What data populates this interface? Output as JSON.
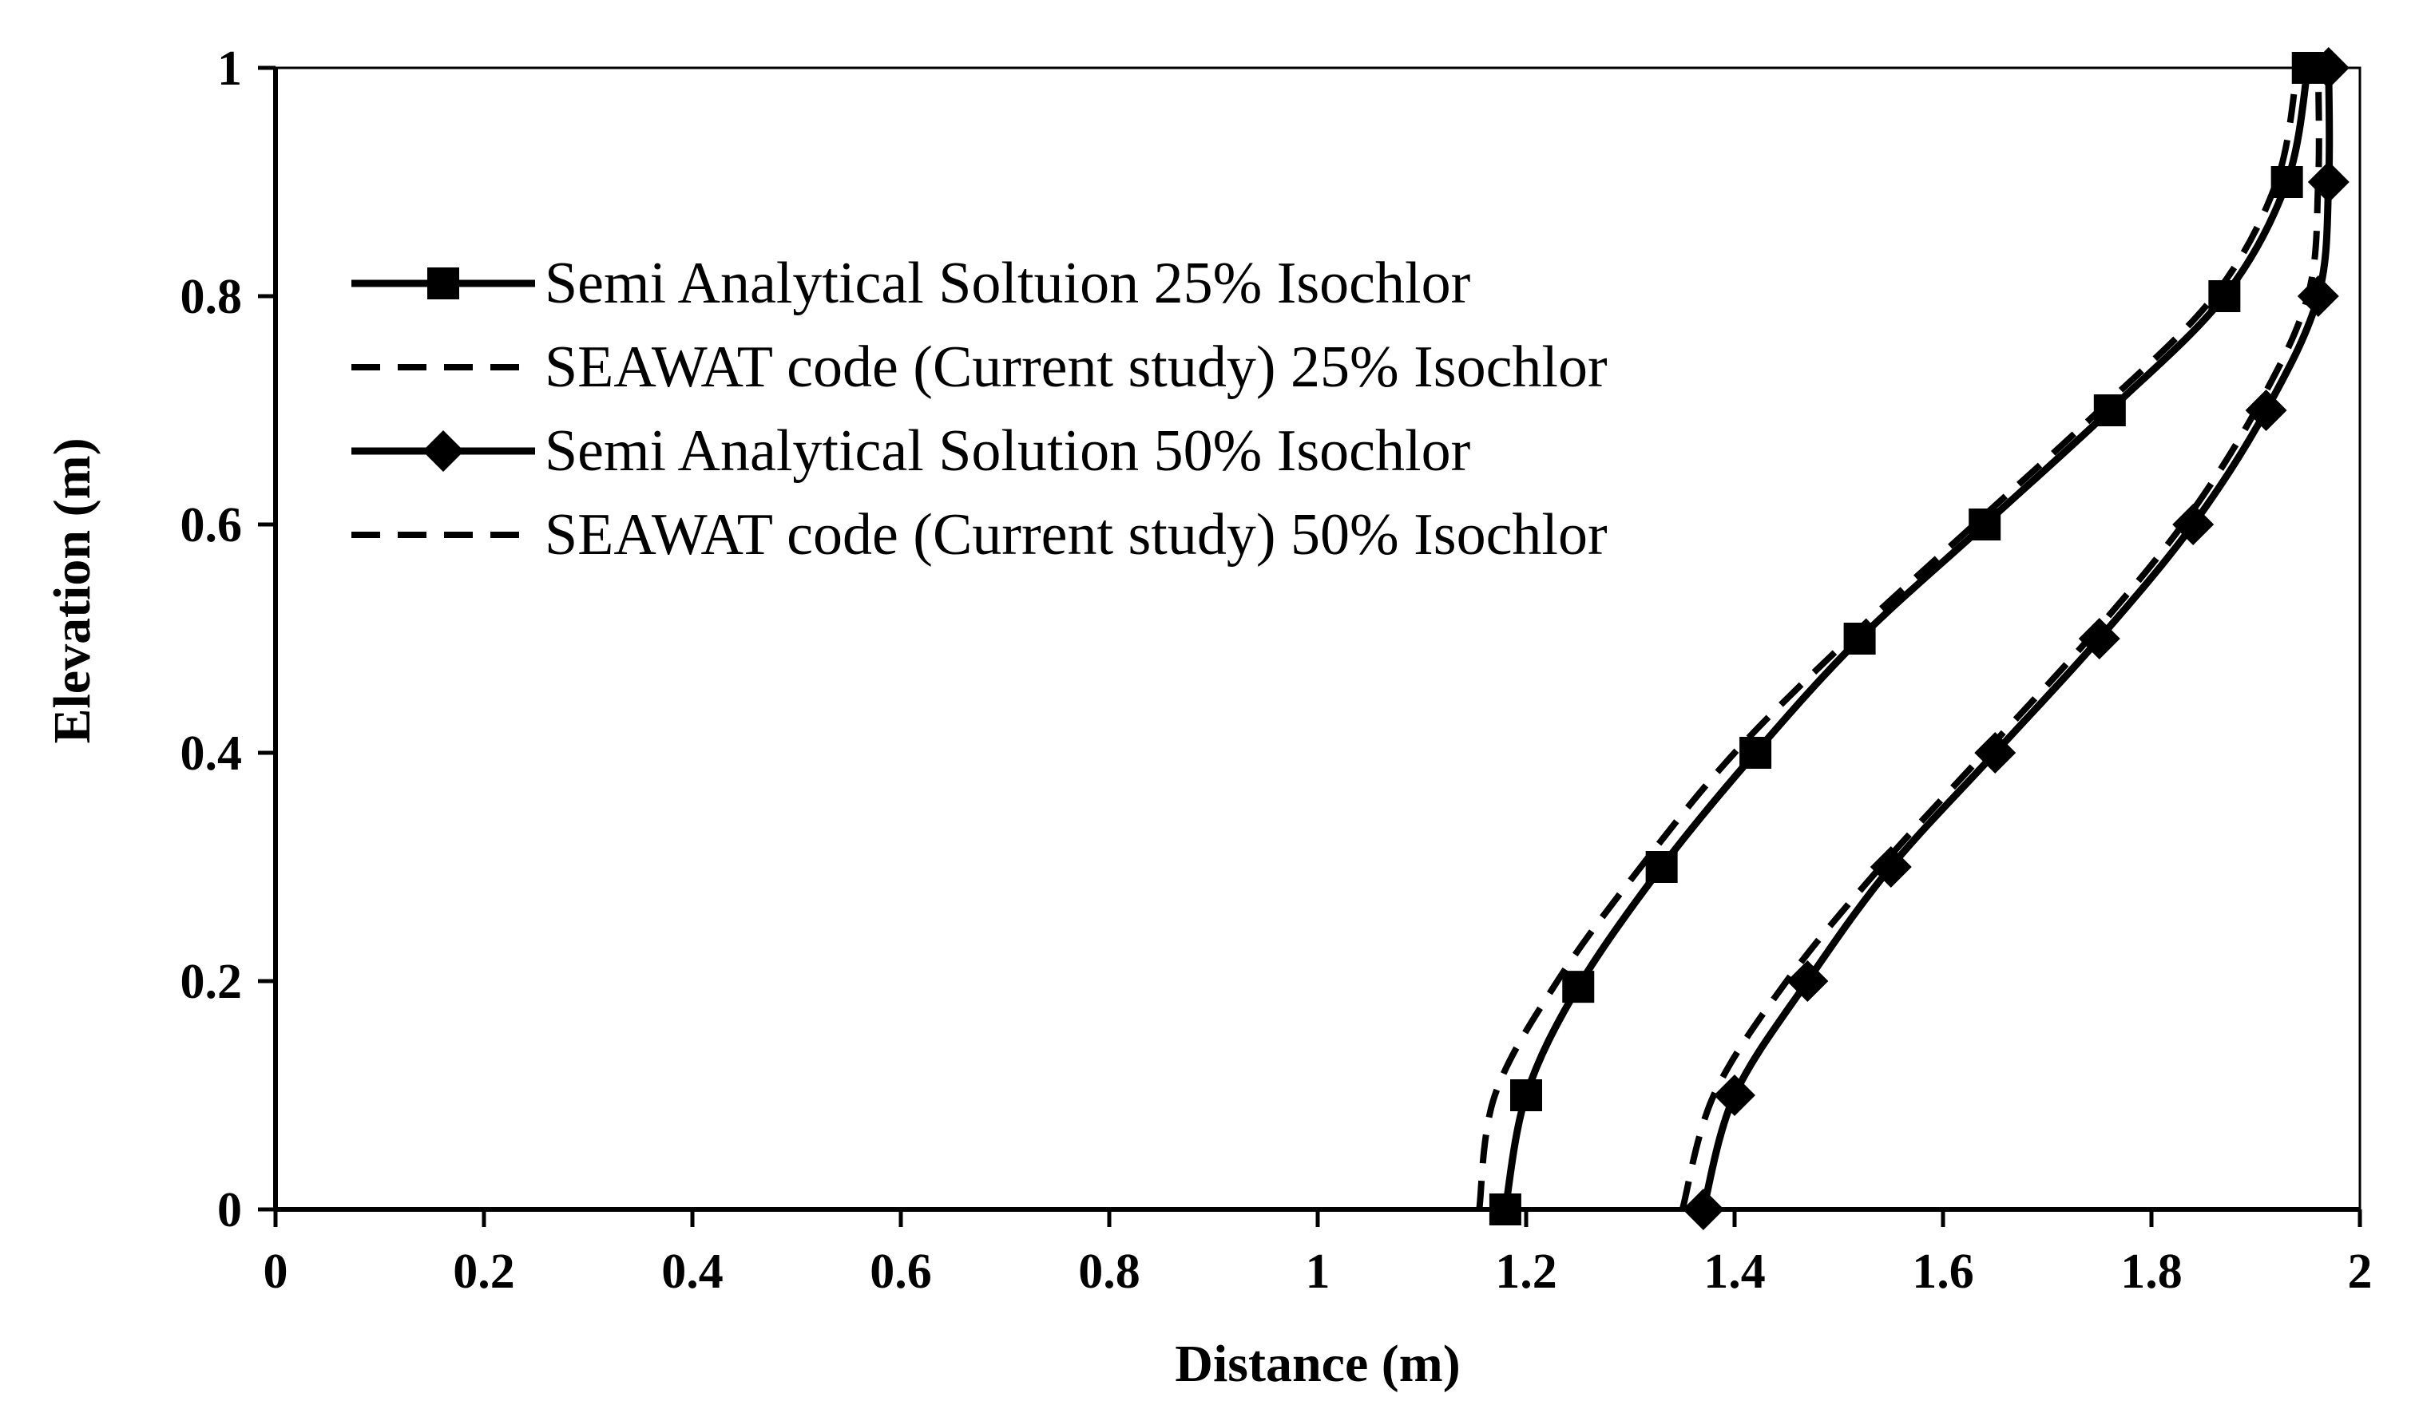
{
  "chart_data": {
    "type": "line",
    "xlabel": "Distance (m)",
    "ylabel": "Elevation (m)",
    "xlim": [
      0,
      2
    ],
    "ylim": [
      0,
      1
    ],
    "x_ticks": [
      "0",
      "0.2",
      "0.4",
      "0.6",
      "0.8",
      "1",
      "1.2",
      "1.4",
      "1.6",
      "1.8",
      "2"
    ],
    "y_ticks": [
      "0",
      "0.2",
      "0.4",
      "0.6",
      "0.8",
      "1"
    ],
    "grid": false,
    "legend_position": "upper-left",
    "series": [
      {
        "name": "Semi Analytical Soltuion 25% Isochlor",
        "style": "solid",
        "marker": "square",
        "color": "#000000",
        "points": [
          {
            "x": 1.18,
            "y": 0.0
          },
          {
            "x": 1.2,
            "y": 0.1
          },
          {
            "x": 1.25,
            "y": 0.195
          },
          {
            "x": 1.33,
            "y": 0.3
          },
          {
            "x": 1.42,
            "y": 0.4
          },
          {
            "x": 1.52,
            "y": 0.5
          },
          {
            "x": 1.64,
            "y": 0.6
          },
          {
            "x": 1.76,
            "y": 0.7
          },
          {
            "x": 1.87,
            "y": 0.8
          },
          {
            "x": 1.93,
            "y": 0.9
          },
          {
            "x": 1.95,
            "y": 1.0
          }
        ]
      },
      {
        "name": "SEAWAT code (Current study) 25% Isochlor",
        "style": "dashed",
        "marker": "none",
        "color": "#000000",
        "points": [
          {
            "x": 1.155,
            "y": 0.0
          },
          {
            "x": 1.17,
            "y": 0.1
          },
          {
            "x": 1.23,
            "y": 0.2
          },
          {
            "x": 1.31,
            "y": 0.3
          },
          {
            "x": 1.4,
            "y": 0.4
          },
          {
            "x": 1.51,
            "y": 0.5
          },
          {
            "x": 1.63,
            "y": 0.6
          },
          {
            "x": 1.75,
            "y": 0.7
          },
          {
            "x": 1.86,
            "y": 0.8
          },
          {
            "x": 1.92,
            "y": 0.9
          },
          {
            "x": 1.94,
            "y": 1.0
          }
        ]
      },
      {
        "name": "Semi Analytical Solution 50% Isochlor",
        "style": "solid",
        "marker": "diamond",
        "color": "#000000",
        "points": [
          {
            "x": 1.37,
            "y": 0.0
          },
          {
            "x": 1.4,
            "y": 0.1
          },
          {
            "x": 1.47,
            "y": 0.2
          },
          {
            "x": 1.55,
            "y": 0.3
          },
          {
            "x": 1.65,
            "y": 0.4
          },
          {
            "x": 1.75,
            "y": 0.5
          },
          {
            "x": 1.84,
            "y": 0.6
          },
          {
            "x": 1.91,
            "y": 0.7
          },
          {
            "x": 1.96,
            "y": 0.8
          },
          {
            "x": 1.97,
            "y": 0.9
          },
          {
            "x": 1.97,
            "y": 1.0
          }
        ]
      },
      {
        "name": "SEAWAT code (Current study) 50% Isochlor",
        "style": "dashed",
        "marker": "none",
        "color": "#000000",
        "points": [
          {
            "x": 1.35,
            "y": 0.0
          },
          {
            "x": 1.38,
            "y": 0.1
          },
          {
            "x": 1.45,
            "y": 0.2
          },
          {
            "x": 1.54,
            "y": 0.3
          },
          {
            "x": 1.64,
            "y": 0.4
          },
          {
            "x": 1.74,
            "y": 0.5
          },
          {
            "x": 1.83,
            "y": 0.6
          },
          {
            "x": 1.9,
            "y": 0.7
          },
          {
            "x": 1.95,
            "y": 0.8
          },
          {
            "x": 1.96,
            "y": 0.9
          },
          {
            "x": 1.96,
            "y": 1.0
          }
        ]
      }
    ]
  }
}
